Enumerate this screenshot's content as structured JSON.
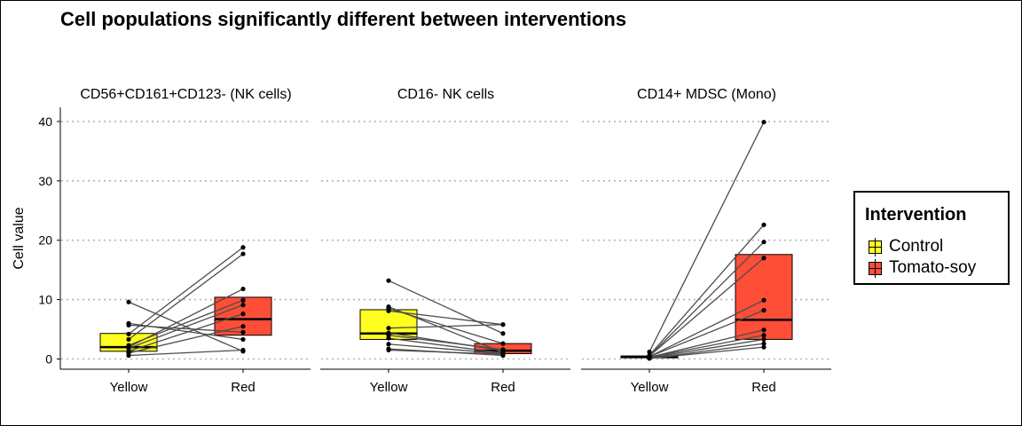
{
  "title": "Cell populations significantly different between interventions",
  "chart_data": {
    "type": "box",
    "ylabel": "Cell value",
    "ylim": [
      -2,
      42
    ],
    "yticks": [
      0,
      10,
      20,
      30,
      40
    ],
    "grid": "horizontal dotted",
    "categories": [
      "Yellow",
      "Red"
    ],
    "legend": {
      "title": "Intervention",
      "position": "right",
      "entries": [
        {
          "label": "Control",
          "color": "#FFFF1F"
        },
        {
          "label": "Tomato-soy",
          "color": "#FF4E37"
        }
      ]
    },
    "panels": [
      {
        "title": "CD56+CD161+CD123- (NK cells)",
        "boxes": [
          {
            "category": "Yellow",
            "group": "Control",
            "q1": 1.3,
            "median": 2.0,
            "q3": 4.3
          },
          {
            "category": "Red",
            "group": "Tomato-soy",
            "q1": 4.0,
            "median": 6.7,
            "q3": 10.4
          }
        ],
        "pairs": [
          [
            9.6,
            1.3
          ],
          [
            6.0,
            3.3
          ],
          [
            5.7,
            4.5
          ],
          [
            4.2,
            18.8
          ],
          [
            3.3,
            17.7
          ],
          [
            2.3,
            9.9
          ],
          [
            2.0,
            11.8
          ],
          [
            1.8,
            9.1
          ],
          [
            1.3,
            7.6
          ],
          [
            1.0,
            5.5
          ],
          [
            0.6,
            1.5
          ]
        ]
      },
      {
        "title": "CD16- NK cells",
        "boxes": [
          {
            "category": "Yellow",
            "group": "Control",
            "q1": 3.3,
            "median": 4.3,
            "q3": 8.3
          },
          {
            "category": "Red",
            "group": "Tomato-soy",
            "q1": 0.9,
            "median": 1.4,
            "q3": 2.6
          }
        ],
        "pairs": [
          [
            13.2,
            4.3
          ],
          [
            8.8,
            1.1
          ],
          [
            8.5,
            2.6
          ],
          [
            8.1,
            5.8
          ],
          [
            5.2,
            5.8
          ],
          [
            4.4,
            1.4
          ],
          [
            4.0,
            1.6
          ],
          [
            3.5,
            1.0
          ],
          [
            2.5,
            0.9
          ],
          [
            1.7,
            0.6
          ],
          [
            1.5,
            0.8
          ]
        ]
      },
      {
        "title": "CD14+ MDSC (Mono)",
        "boxes": [
          {
            "category": "Yellow",
            "group": "Control",
            "q1": 0.2,
            "median": 0.4,
            "q3": 0.5
          },
          {
            "category": "Red",
            "group": "Tomato-soy",
            "q1": 3.3,
            "median": 6.6,
            "q3": 17.6
          }
        ],
        "pairs": [
          [
            1.2,
            39.9
          ],
          [
            0.6,
            22.6
          ],
          [
            0.5,
            19.7
          ],
          [
            0.5,
            17.0
          ],
          [
            0.4,
            9.9
          ],
          [
            0.4,
            8.2
          ],
          [
            0.3,
            4.9
          ],
          [
            0.3,
            4.0
          ],
          [
            0.2,
            3.3
          ],
          [
            0.1,
            2.6
          ],
          [
            0.1,
            2.0
          ]
        ]
      }
    ]
  }
}
